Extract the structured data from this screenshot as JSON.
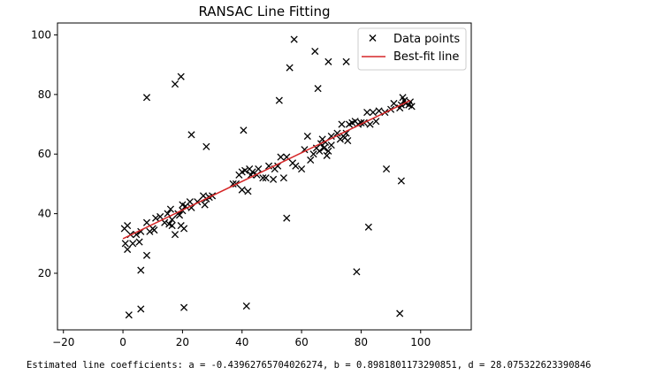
{
  "chart_data": {
    "type": "scatter",
    "title": "RANSAC Line Fitting",
    "xlabel": "",
    "ylabel": "",
    "xlim": [
      -22,
      117
    ],
    "ylim": [
      1,
      104
    ],
    "xticks": [
      -20,
      0,
      20,
      40,
      60,
      80,
      100
    ],
    "yticks": [
      20,
      40,
      60,
      80,
      100
    ],
    "legend_position": "top-right",
    "series": [
      {
        "name": "Data points",
        "kind": "scatter",
        "marker": "x",
        "color": "#000000",
        "points": [
          [
            0.5,
            35
          ],
          [
            0.8,
            30
          ],
          [
            1.5,
            36
          ],
          [
            1.5,
            28
          ],
          [
            2.5,
            33
          ],
          [
            3.3,
            30
          ],
          [
            4.5,
            33
          ],
          [
            5.5,
            30.5
          ],
          [
            6,
            34
          ],
          [
            8,
            26
          ],
          [
            8,
            37
          ],
          [
            9,
            34
          ],
          [
            10,
            35
          ],
          [
            10.5,
            34.5
          ],
          [
            11,
            38.5
          ],
          [
            12.5,
            39
          ],
          [
            14,
            37
          ],
          [
            15,
            40
          ],
          [
            15.5,
            36.5
          ],
          [
            16.5,
            38
          ],
          [
            16.5,
            36
          ],
          [
            16,
            41.5
          ],
          [
            17.5,
            33
          ],
          [
            18.5,
            40
          ],
          [
            19,
            39.5
          ],
          [
            19.5,
            36
          ],
          [
            20,
            41
          ],
          [
            20.5,
            35
          ],
          [
            20,
            43
          ],
          [
            21,
            42.5
          ],
          [
            22.5,
            44
          ],
          [
            23,
            42
          ],
          [
            25,
            44
          ],
          [
            27,
            46
          ],
          [
            27.5,
            43
          ],
          [
            28,
            45
          ],
          [
            29,
            45.5
          ],
          [
            30,
            46
          ],
          [
            37,
            50
          ],
          [
            38,
            50
          ],
          [
            39,
            53
          ],
          [
            40,
            54
          ],
          [
            40,
            48
          ],
          [
            41,
            54.5
          ],
          [
            42,
            47.5
          ],
          [
            42.5,
            55
          ],
          [
            43,
            53
          ],
          [
            43.5,
            54
          ],
          [
            45,
            53
          ],
          [
            45.5,
            55
          ],
          [
            47,
            52
          ],
          [
            48,
            52
          ],
          [
            49,
            56
          ],
          [
            50.5,
            51.5
          ],
          [
            51,
            55
          ],
          [
            52,
            56
          ],
          [
            53,
            59
          ],
          [
            54,
            52
          ],
          [
            55,
            59
          ],
          [
            57,
            57
          ],
          [
            58,
            56
          ],
          [
            60,
            55
          ],
          [
            61,
            61.5
          ],
          [
            62,
            66
          ],
          [
            63,
            58
          ],
          [
            64,
            60
          ],
          [
            65,
            62
          ],
          [
            66,
            61
          ],
          [
            66.5,
            63.5
          ],
          [
            67,
            65
          ],
          [
            67.5,
            62
          ],
          [
            68,
            64
          ],
          [
            68.5,
            59.5
          ],
          [
            69,
            61
          ],
          [
            70,
            66
          ],
          [
            70,
            63
          ],
          [
            72,
            67
          ],
          [
            73,
            65
          ],
          [
            73.5,
            70
          ],
          [
            74,
            66
          ],
          [
            74.5,
            65.5
          ],
          [
            75,
            67
          ],
          [
            75.5,
            64.5
          ],
          [
            76,
            70
          ],
          [
            77,
            70.5
          ],
          [
            78,
            71
          ],
          [
            79,
            70
          ],
          [
            80,
            70.5
          ],
          [
            81,
            70.5
          ],
          [
            82,
            74
          ],
          [
            83,
            70
          ],
          [
            84,
            74
          ],
          [
            85,
            71
          ],
          [
            86,
            74.5
          ],
          [
            88,
            74
          ],
          [
            90,
            75
          ],
          [
            91,
            77
          ],
          [
            93,
            75.5
          ],
          [
            93.5,
            76.5
          ],
          [
            94,
            79
          ],
          [
            94.5,
            78
          ],
          [
            95,
            77
          ],
          [
            96,
            76.5
          ],
          [
            96.5,
            77.5
          ],
          [
            97,
            76
          ],
          [
            2,
            6
          ],
          [
            6,
            8
          ],
          [
            6,
            21
          ],
          [
            8,
            79
          ],
          [
            17.5,
            83.5
          ],
          [
            19.5,
            86
          ],
          [
            20.5,
            8.5
          ],
          [
            23,
            66.5
          ],
          [
            28,
            62.5
          ],
          [
            40.5,
            68
          ],
          [
            41.5,
            9
          ],
          [
            52.5,
            78
          ],
          [
            55,
            38.5
          ],
          [
            56,
            89
          ],
          [
            57.5,
            98.5
          ],
          [
            64.5,
            94.5
          ],
          [
            65.5,
            82
          ],
          [
            69,
            91
          ],
          [
            75,
            91
          ],
          [
            78.5,
            20.5
          ],
          [
            82.5,
            35.5
          ],
          [
            88.5,
            55
          ],
          [
            93,
            6.5
          ],
          [
            93.5,
            51
          ]
        ]
      },
      {
        "name": "Best-fit line",
        "kind": "line",
        "color": "#d62728",
        "points": [
          [
            0,
            31.6
          ],
          [
            96.5,
            78
          ]
        ]
      }
    ]
  },
  "output": {
    "coefficients_text": "Estimated line coefficients: a = -0.43962765704026274, b = 0.8981801173290851, d = 28.075322623390846"
  }
}
